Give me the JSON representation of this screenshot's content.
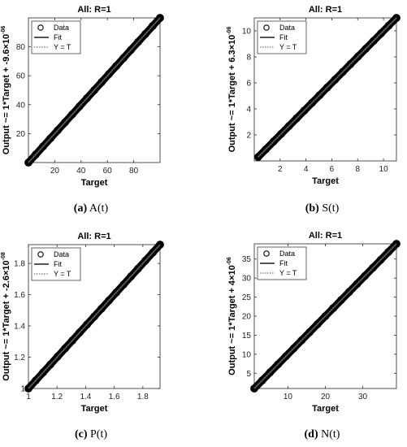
{
  "legend_labels": [
    "Data",
    "Fit",
    "Y = T"
  ],
  "chart_data": [
    {
      "type": "scatter",
      "panel": "a",
      "title": "All: R=1",
      "xlabel": "Target",
      "ylabel_main": "Output ~= 1*Target + -9.6×10",
      "ylabel_exp": "-06",
      "caption_letter": "(a)",
      "caption_text": " A(t)",
      "xlim": [
        0,
        100
      ],
      "ylim": [
        0,
        100
      ],
      "xticks": [
        20,
        40,
        60,
        80
      ],
      "xtick_labels": [
        "20",
        "40",
        "60",
        "80"
      ],
      "yticks": [
        20,
        40,
        60,
        80
      ],
      "ytick_labels": [
        "20",
        "40",
        "60",
        "80"
      ],
      "x": [
        0,
        100
      ],
      "y": [
        0,
        100
      ],
      "legend": "top-left",
      "grid": false
    },
    {
      "type": "scatter",
      "panel": "b",
      "title": "All: R=1",
      "xlabel": "Target",
      "ylabel_main": "Output ~= 1*Target + 6.3×10",
      "ylabel_exp": "-06",
      "caption_letter": "(b)",
      "caption_text": " S(t)",
      "xlim": [
        0,
        11
      ],
      "ylim": [
        0,
        11
      ],
      "xticks": [
        2,
        4,
        6,
        8,
        10
      ],
      "xtick_labels": [
        "2",
        "4",
        "6",
        "8",
        "10"
      ],
      "yticks": [
        2,
        4,
        6,
        8,
        10
      ],
      "ytick_labels": [
        "2",
        "4",
        "6",
        "8",
        "10"
      ],
      "x": [
        0.3,
        11
      ],
      "y": [
        0.3,
        11
      ],
      "legend": "top-left",
      "grid": false
    },
    {
      "type": "scatter",
      "panel": "c",
      "title": "All: R=1",
      "xlabel": "Target",
      "ylabel_main": "Output ~= 1*Target + -2.6×10",
      "ylabel_exp": "-08",
      "caption_letter": "(c)",
      "caption_text": " P(t)",
      "xlim": [
        1,
        1.92
      ],
      "ylim": [
        1,
        1.92
      ],
      "xticks": [
        1,
        1.2,
        1.4,
        1.6,
        1.8
      ],
      "xtick_labels": [
        "1",
        "1.2",
        "1.4",
        "1.6",
        "1.8"
      ],
      "yticks": [
        1,
        1.2,
        1.4,
        1.6,
        1.8
      ],
      "ytick_labels": [
        "1",
        "1.2",
        "1.4",
        "1.6",
        "1.8"
      ],
      "x": [
        1,
        1.92
      ],
      "y": [
        1,
        1.92
      ],
      "legend": "top-left",
      "grid": false
    },
    {
      "type": "scatter",
      "panel": "d",
      "title": "All: R=1",
      "xlabel": "Target",
      "ylabel_main": "Output ~= 1*Target + 4×10",
      "ylabel_exp": "-06",
      "caption_letter": "(d)",
      "caption_text": " N(t)",
      "xlim": [
        1,
        39
      ],
      "ylim": [
        1,
        39
      ],
      "xticks": [
        10,
        20,
        30
      ],
      "xtick_labels": [
        "10",
        "20",
        "30"
      ],
      "yticks": [
        5,
        10,
        15,
        20,
        25,
        30,
        35
      ],
      "ytick_labels": [
        "5",
        "10",
        "15",
        "20",
        "25",
        "30",
        "35"
      ],
      "x": [
        1,
        39
      ],
      "y": [
        1,
        39
      ],
      "legend": "top-left",
      "grid": false
    }
  ]
}
